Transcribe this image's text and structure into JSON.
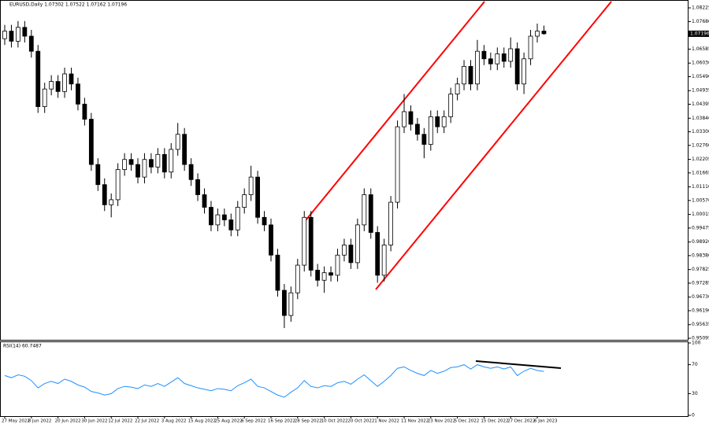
{
  "chart_data": [
    {
      "type": "candlestick",
      "title": "EURUSD,Daily  1.07302 1.07522 1.07162 1.07196",
      "categories": [
        "27 May 2022",
        null,
        null,
        null,
        "8 Jun 2022",
        null,
        null,
        null,
        "20 Jun 2022",
        null,
        null,
        null,
        "30 Jun 2022",
        null,
        null,
        null,
        "12 Jul 2022",
        null,
        null,
        null,
        "22 Jul 2022",
        null,
        null,
        null,
        "3 Aug 2022",
        null,
        null,
        null,
        "15 Aug 2022",
        null,
        null,
        null,
        "25 Aug 2022",
        null,
        null,
        null,
        "6 Sep 2022",
        null,
        null,
        null,
        "16 Sep 2022",
        null,
        null,
        null,
        "28 Sep 2022",
        null,
        null,
        null,
        "10 Oct 2022",
        null,
        null,
        null,
        "20 Oct 2022",
        null,
        null,
        null,
        "1 Nov 2022",
        null,
        null,
        null,
        "11 Nov 2022",
        null,
        null,
        null,
        "23 Nov 2022",
        null,
        null,
        null,
        "5 Dec 2022",
        null,
        null,
        null,
        "15 Dec 2022",
        null,
        null,
        null,
        "27 Dec 2022",
        null,
        null,
        null,
        "6 Jan 2023",
        null
      ],
      "open": [
        1.07,
        1.073,
        1.069,
        1.0745,
        1.071,
        1.065,
        1.043,
        1.05,
        1.053,
        1.049,
        1.056,
        1.052,
        1.044,
        1.038,
        1.02,
        1.012,
        1.004,
        1.006,
        1.018,
        1.022,
        1.02,
        1.015,
        1.022,
        1.019,
        1.024,
        1.017,
        1.026,
        1.032,
        1.02,
        1.014,
        1.008,
        1.003,
        0.996,
        1.0,
        0.998,
        0.994,
        1.003,
        1.008,
        1.015,
        0.999,
        0.996,
        0.984,
        0.97,
        0.96,
        0.969,
        0.98,
        0.999,
        0.978,
        0.974,
        0.977,
        0.976,
        0.984,
        0.988,
        0.981,
        0.996,
        1.008,
        0.993,
        0.976,
        0.988,
        1.005,
        1.035,
        1.041,
        1.036,
        1.032,
        1.028,
        1.039,
        1.035,
        1.039,
        1.048,
        1.052,
        1.059,
        1.052,
        1.065,
        1.062,
        1.06,
        1.064,
        1.061,
        1.066,
        1.052,
        1.062,
        1.071,
        1.07302
      ],
      "high": [
        1.0755,
        1.0755,
        1.077,
        1.077,
        1.0735,
        1.0675,
        1.0525,
        1.0555,
        1.0555,
        1.0585,
        1.0585,
        1.0545,
        1.0465,
        1.0405,
        1.0225,
        1.0145,
        1.0085,
        1.0205,
        1.0245,
        1.0245,
        1.0225,
        1.0245,
        1.0245,
        1.0265,
        1.0265,
        1.0285,
        1.0365,
        1.0345,
        1.0225,
        1.0165,
        1.0105,
        1.0055,
        1.0025,
        1.0025,
        1.0005,
        1.0055,
        1.0105,
        1.0195,
        1.0175,
        1.0015,
        0.9985,
        0.9865,
        0.9725,
        0.9715,
        0.9825,
        1.0015,
        1.0015,
        0.9805,
        0.9795,
        0.9795,
        0.9865,
        0.9905,
        0.9905,
        0.9985,
        1.0105,
        1.0105,
        0.9955,
        0.9905,
        1.0075,
        1.0375,
        1.048,
        1.0435,
        1.0385,
        1.0345,
        1.0415,
        1.0415,
        1.0415,
        1.0505,
        1.0545,
        1.0615,
        1.0615,
        1.0695,
        1.0675,
        1.0645,
        1.0665,
        1.0665,
        1.0705,
        1.0685,
        1.0645,
        1.0735,
        1.076,
        1.07522
      ],
      "low": [
        1.0675,
        1.0665,
        1.0665,
        1.0685,
        1.0625,
        1.0405,
        1.0405,
        1.0475,
        1.0465,
        1.0465,
        1.0495,
        1.0415,
        1.0355,
        1.0175,
        1.0095,
        1.0015,
        0.999,
        1.0035,
        1.0155,
        1.0175,
        1.0125,
        1.0125,
        1.0165,
        1.0165,
        1.0145,
        1.0145,
        1.0235,
        1.0175,
        1.0115,
        1.0055,
        1.0005,
        0.9935,
        0.9935,
        0.9955,
        0.9915,
        0.9915,
        1.0005,
        1.0055,
        0.9965,
        0.9935,
        0.9815,
        0.9675,
        0.955,
        0.9575,
        0.9665,
        0.9775,
        0.9755,
        0.9715,
        0.969,
        0.9735,
        0.9735,
        0.9815,
        0.9785,
        0.9785,
        0.9935,
        0.9905,
        0.973,
        0.9735,
        0.9855,
        1.0025,
        1.0325,
        1.0335,
        1.0295,
        1.0225,
        1.0255,
        1.0325,
        1.0325,
        1.0365,
        1.0455,
        1.0495,
        1.0495,
        1.0495,
        1.0595,
        1.0575,
        1.0575,
        1.0585,
        1.0585,
        1.0495,
        1.048,
        1.0595,
        1.0685,
        1.07162
      ],
      "close": [
        1.073,
        1.069,
        1.0745,
        1.071,
        1.065,
        1.043,
        1.05,
        1.053,
        1.049,
        1.056,
        1.052,
        1.044,
        1.038,
        1.02,
        1.012,
        1.004,
        1.006,
        1.018,
        1.022,
        1.02,
        1.015,
        1.022,
        1.019,
        1.024,
        1.017,
        1.026,
        1.032,
        1.02,
        1.014,
        1.008,
        1.003,
        0.996,
        1.0,
        0.998,
        0.994,
        1.003,
        1.008,
        1.015,
        0.999,
        0.996,
        0.984,
        0.97,
        0.96,
        0.969,
        0.98,
        0.999,
        0.978,
        0.974,
        0.977,
        0.976,
        0.984,
        0.988,
        0.981,
        0.996,
        1.008,
        0.993,
        0.976,
        0.988,
        1.005,
        1.035,
        1.041,
        1.036,
        1.032,
        1.028,
        1.039,
        1.035,
        1.039,
        1.048,
        1.052,
        1.059,
        1.052,
        1.065,
        1.062,
        1.06,
        1.064,
        1.061,
        1.066,
        1.052,
        1.062,
        1.071,
        1.073,
        1.07196
      ],
      "up_color": "#ffffff",
      "down_color": "#000000",
      "ylim": [
        0.95095,
        1.08225
      ],
      "yticks": [
        {
          "value": 1.08225,
          "label": "1.08225"
        },
        {
          "value": 1.0768,
          "label": "1.07680"
        },
        {
          "value": 1.06585,
          "label": "1.06585"
        },
        {
          "value": 1.0603,
          "label": "1.06030"
        },
        {
          "value": 1.0549,
          "label": "1.05490"
        },
        {
          "value": 1.04935,
          "label": "1.04935"
        },
        {
          "value": 1.04395,
          "label": "1.04395"
        },
        {
          "value": 1.0384,
          "label": "1.03840"
        },
        {
          "value": 1.033,
          "label": "1.03300"
        },
        {
          "value": 1.0276,
          "label": "1.02760"
        },
        {
          "value": 1.02205,
          "label": "1.02205"
        },
        {
          "value": 1.01665,
          "label": "1.01665"
        },
        {
          "value": 1.0111,
          "label": "1.01110"
        },
        {
          "value": 1.0057,
          "label": "1.00570"
        },
        {
          "value": 1.00015,
          "label": "1.00015"
        },
        {
          "value": 0.99475,
          "label": "0.99475"
        },
        {
          "value": 0.9892,
          "label": "0.98920"
        },
        {
          "value": 0.9838,
          "label": "0.98380"
        },
        {
          "value": 0.97825,
          "label": "0.97825"
        },
        {
          "value": 0.97285,
          "label": "0.97285"
        },
        {
          "value": 0.9673,
          "label": "0.96730"
        },
        {
          "value": 0.9619,
          "label": "0.96190"
        },
        {
          "value": 0.95635,
          "label": "0.95635"
        },
        {
          "value": 0.95095,
          "label": "0.95095"
        }
      ]
    },
    {
      "type": "line",
      "title": "RSI(14) 60.7487",
      "color": "#1e90ff",
      "values": [
        55,
        52,
        56,
        54,
        48,
        38,
        44,
        47,
        44,
        50,
        47,
        42,
        39,
        33,
        31,
        28,
        30,
        37,
        40,
        39,
        37,
        42,
        40,
        44,
        40,
        46,
        52,
        44,
        41,
        38,
        36,
        34,
        37,
        36,
        34,
        41,
        45,
        50,
        40,
        38,
        33,
        28,
        25,
        32,
        38,
        48,
        40,
        38,
        41,
        40,
        45,
        47,
        43,
        50,
        56,
        48,
        40,
        47,
        55,
        65,
        67,
        62,
        58,
        55,
        62,
        58,
        61,
        66,
        67,
        70,
        64,
        70,
        67,
        65,
        67,
        64,
        67,
        55,
        61,
        65,
        62,
        60.7487
      ],
      "ylim": [
        0,
        100
      ],
      "yticks": [
        100,
        70,
        30,
        0
      ]
    }
  ]
}
